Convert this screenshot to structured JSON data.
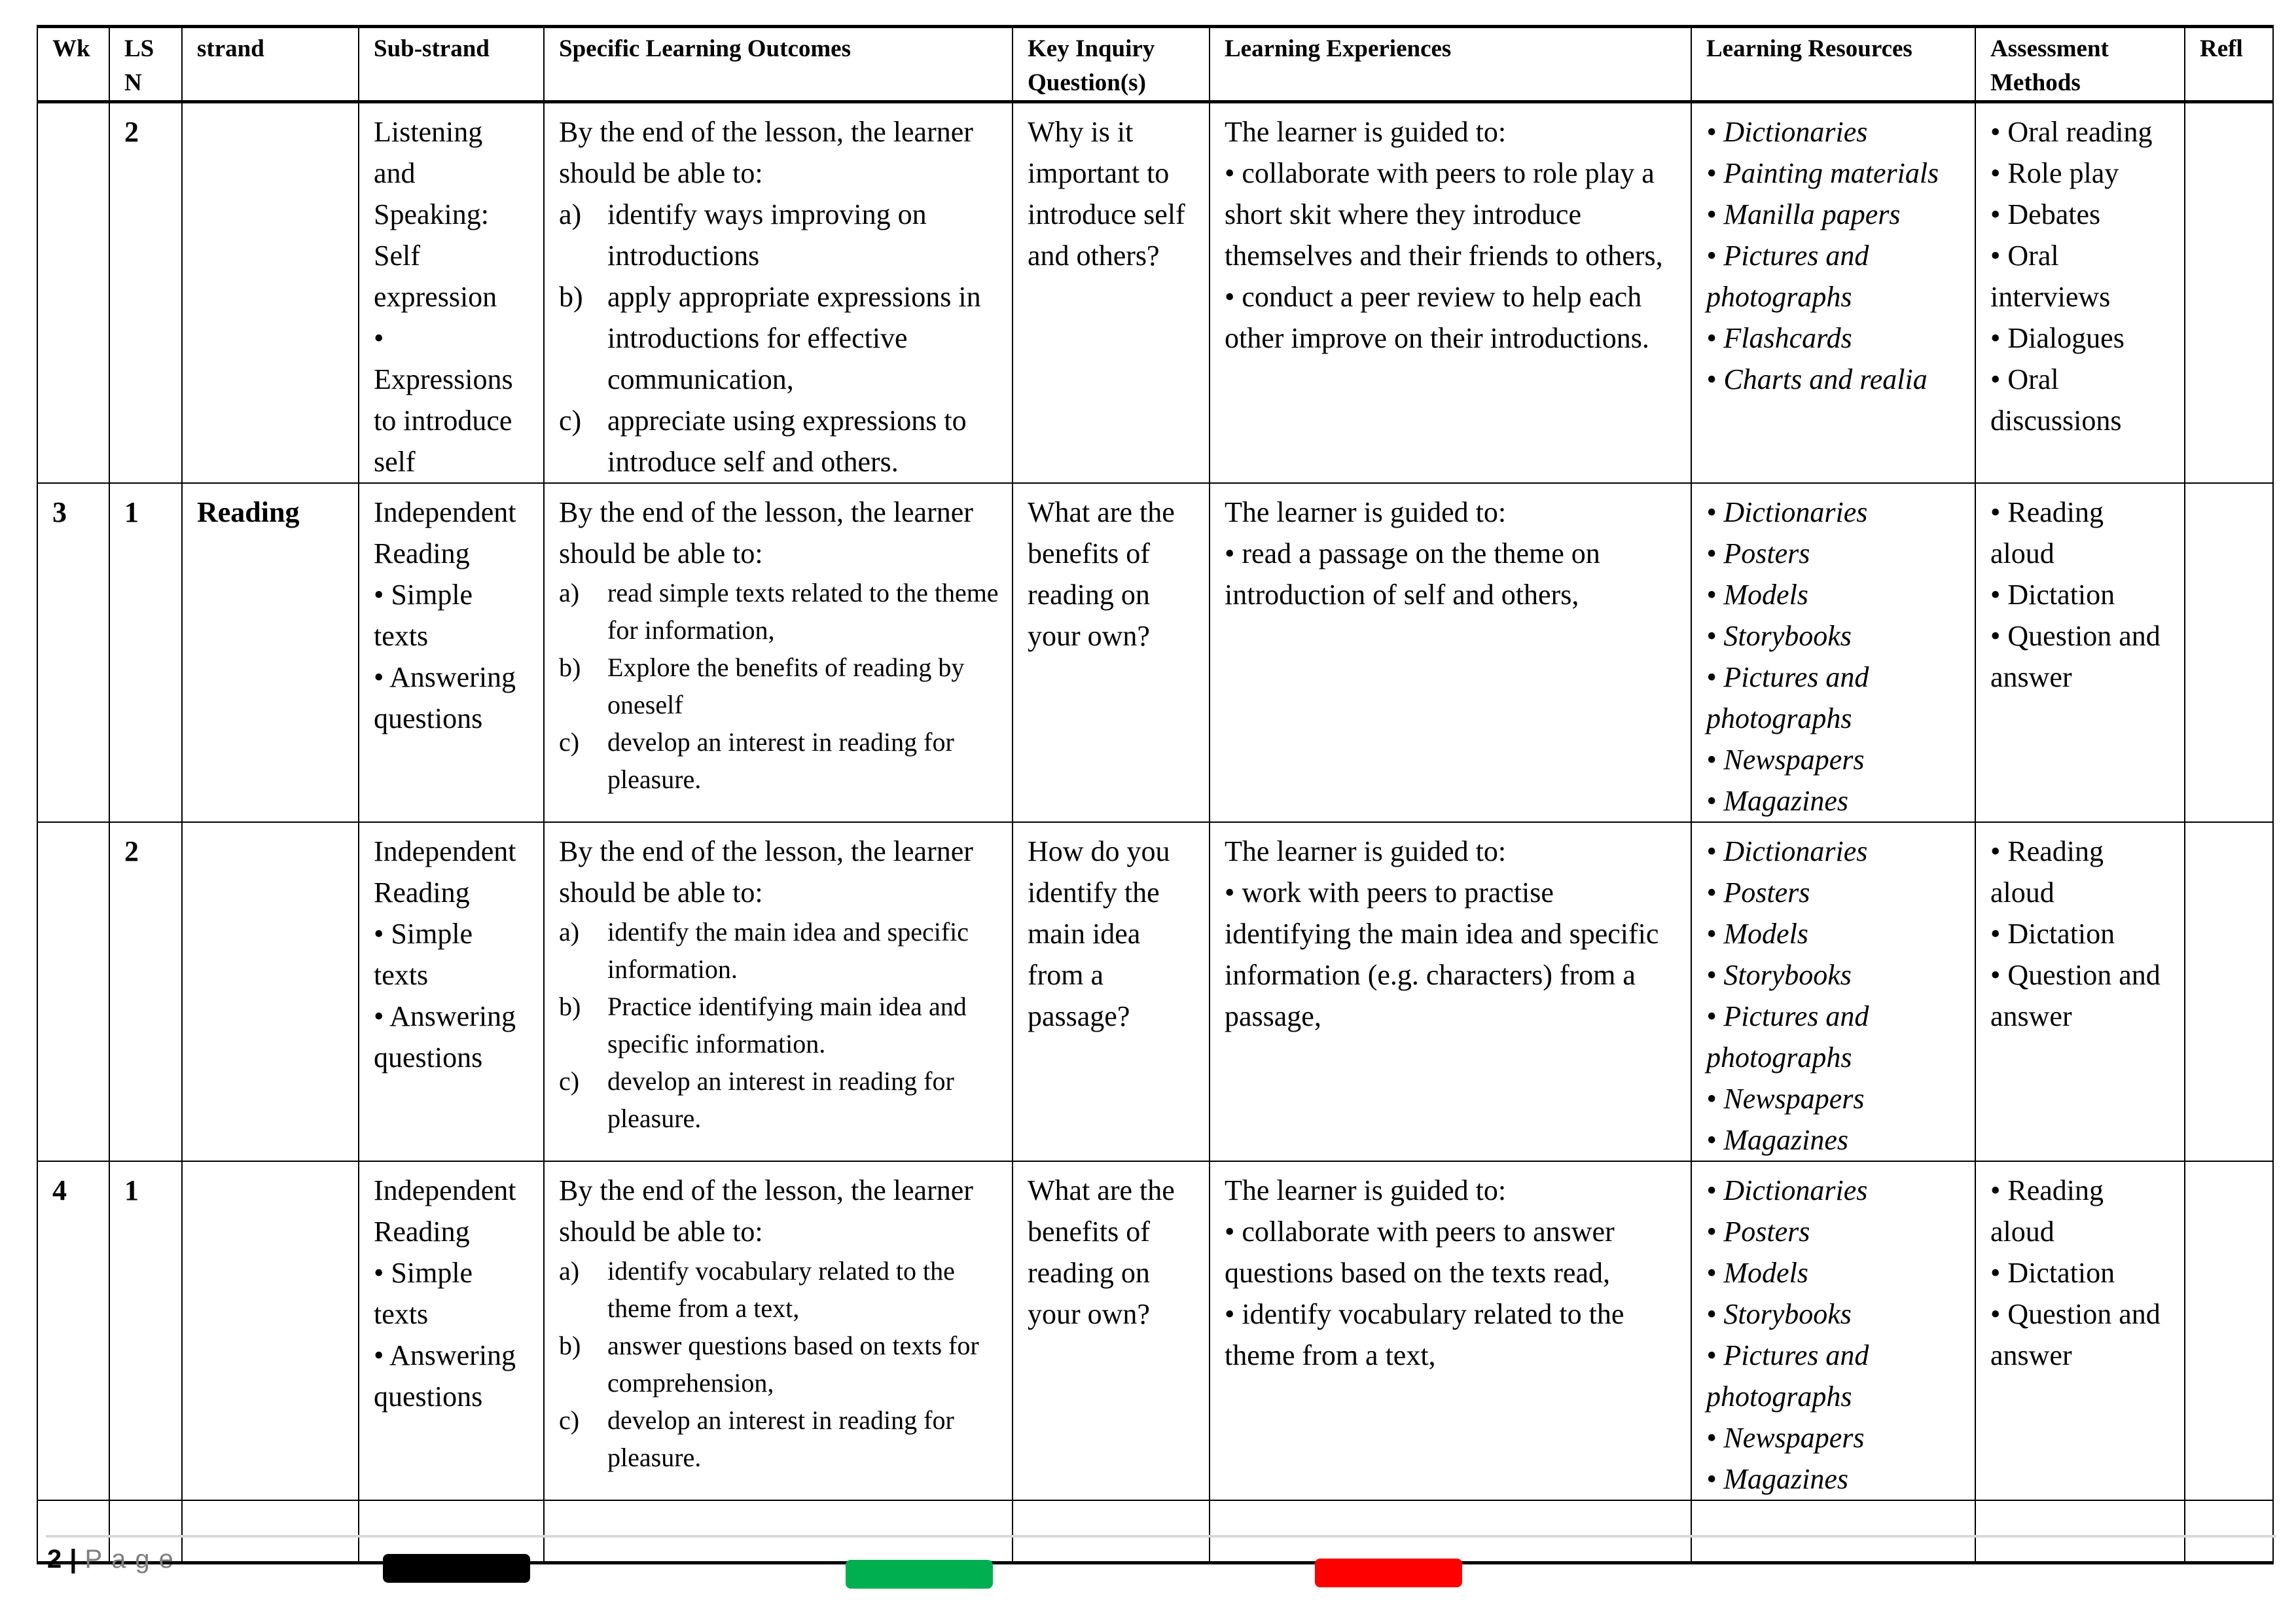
{
  "headers": [
    "Wk",
    "LS N",
    "strand",
    "Sub-strand",
    "Specific Learning Outcomes",
    "Key Inquiry Question(s)",
    "Learning Experiences",
    "Learning Resources",
    "Assessment Methods",
    "Refl"
  ],
  "rows": [
    {
      "wk": "",
      "lsn": "2",
      "strand": "",
      "substrand": [
        "Listening and Speaking: Self expression",
        "•",
        "Expressions to introduce self"
      ],
      "intro": "By the end of the lesson, the learner should be able to:",
      "outcomes": [
        {
          "label": "a)",
          "text": "identify ways improving on introductions"
        },
        {
          "label": "b)",
          "text": "apply appropriate expressions in introductions for effective communication,"
        },
        {
          "label": "c)",
          "text": "appreciate using expressions to introduce self and others."
        }
      ],
      "question": "Why is it important to introduce self and others?",
      "experiences": [
        "The learner is guided to:",
        "• collaborate with peers to role play a short skit where they introduce themselves and their friends to others,",
        "• conduct a peer review to help each other improve on their introductions."
      ],
      "resources": [
        "• Dictionaries",
        "• Painting materials",
        "• Manilla papers",
        "• Pictures and photographs",
        "• Flashcards",
        "• Charts and realia"
      ],
      "assessment": [
        "• Oral reading",
        "• Role play",
        "• Debates",
        "• Oral interviews",
        "• Dialogues",
        "• Oral discussions"
      ]
    },
    {
      "wk": "3",
      "lsn": "1",
      "strand": "Reading",
      "substrand": [
        "Independent Reading",
        "• Simple texts",
        "• Answering questions"
      ],
      "intro": "By the end of the lesson, the learner should be able to:",
      "outcomes": [
        {
          "label": "a)",
          "text": "read simple texts related to the theme for information,"
        },
        {
          "label": "b)",
          "text": "Explore the benefits of reading by oneself"
        },
        {
          "label": "c)",
          "text": "develop an interest in reading for pleasure."
        }
      ],
      "question": "What are the benefits of reading on your own?",
      "experiences": [
        "The learner is guided to:",
        "• read a passage on the theme on introduction of self and others,"
      ],
      "resources": [
        "• Dictionaries",
        "• Posters",
        "• Models",
        "• Storybooks",
        "• Pictures and photographs",
        "• Newspapers",
        "• Magazines"
      ],
      "assessment": [
        "• Reading aloud",
        "• Dictation",
        "• Question and answer"
      ]
    },
    {
      "wk": "",
      "lsn": "2",
      "strand": "",
      "substrand": [
        "Independent Reading",
        "• Simple texts",
        "• Answering questions"
      ],
      "intro": "By the end of the lesson, the learner should be able to:",
      "outcomes": [
        {
          "label": "a)",
          "text": "identify the main idea and specific information."
        },
        {
          "label": "b)",
          "text": "Practice identifying main idea and specific information."
        },
        {
          "label": "c)",
          "text": "develop an interest in reading for pleasure."
        }
      ],
      "question": "How do you identify the main idea from a passage?",
      "experiences": [
        "The learner is guided to:",
        "• work with peers to practise identifying the main idea and specific information (e.g. characters) from a passage,"
      ],
      "resources": [
        "• Dictionaries",
        "• Posters",
        "• Models",
        "• Storybooks",
        "• Pictures and photographs",
        "• Newspapers",
        "• Magazines"
      ],
      "assessment": [
        "• Reading aloud",
        "• Dictation",
        "• Question and answer"
      ]
    },
    {
      "wk": "4",
      "lsn": "1",
      "strand": "",
      "substrand": [
        "Independent Reading",
        "• Simple texts",
        "• Answering questions"
      ],
      "intro": "By the end of the lesson, the learner should be able to:",
      "outcomes": [
        {
          "label": "a)",
          "text": "identify vocabulary related to the theme from a text,"
        },
        {
          "label": "b)",
          "text": "answer questions based on texts for comprehension,"
        },
        {
          "label": "c)",
          "text": "develop an interest in reading for pleasure."
        }
      ],
      "question": "What are the benefits of reading on your own?",
      "experiences": [
        "The learner is guided to:",
        "• collaborate with peers to answer questions based on the texts read,",
        "• identify vocabulary related to the theme from a text,"
      ],
      "resources": [
        "• Dictionaries",
        "• Posters",
        "• Models",
        "• Storybooks",
        "• Pictures and photographs",
        "• Newspapers",
        "• Magazines"
      ],
      "assessment": [
        "• Reading aloud",
        "• Dictation",
        "• Question and answer"
      ]
    }
  ],
  "footer": {
    "page_number": "2",
    "separator": "|",
    "page_label": "Page"
  },
  "color_bars": [
    "#000000",
    "#00b050",
    "#ff0000"
  ]
}
